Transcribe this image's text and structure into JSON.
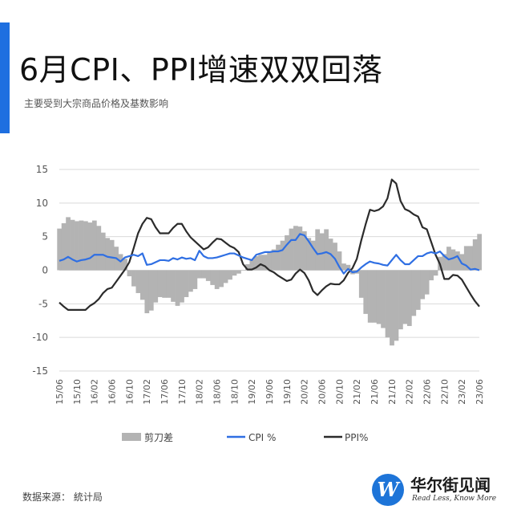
{
  "title": "6月CPI、PPI增速双双回落",
  "subtitle": "主要受到大宗商品价格及基数影响",
  "source": "数据来源： 統计局",
  "logo": {
    "mark": "W",
    "name": "华尔街见闻",
    "slogan": "Read Less, Know More"
  },
  "colors": {
    "accent": "#1e6fe0",
    "cpi": "#2f6fe3",
    "ppi": "#2b2b2b",
    "scissors": "#b3b3b3",
    "grid": "#d9d9d9"
  },
  "chart_data": {
    "type": "line",
    "ylim": [
      -15,
      15
    ],
    "yticks": [
      15,
      10,
      5,
      0,
      -5,
      -10,
      -15
    ],
    "grid": "horizontal",
    "legend_position": "bottom",
    "xtick_labels": [
      "15/06",
      "15/10",
      "16/02",
      "16/06",
      "16/10",
      "17/02",
      "17/06",
      "17/10",
      "18/02",
      "18/06",
      "18/10",
      "19/02",
      "19/06",
      "19/10",
      "20/02",
      "20/06",
      "20/10",
      "21/02",
      "21/06",
      "21/10",
      "22/02",
      "22/06",
      "22/10",
      "23/02",
      "23/06"
    ],
    "x": [
      "15/06",
      "15/07",
      "15/08",
      "15/09",
      "15/10",
      "15/11",
      "15/12",
      "16/01",
      "16/02",
      "16/03",
      "16/04",
      "16/05",
      "16/06",
      "16/07",
      "16/08",
      "16/09",
      "16/10",
      "16/11",
      "16/12",
      "17/01",
      "17/02",
      "17/03",
      "17/04",
      "17/05",
      "17/06",
      "17/07",
      "17/08",
      "17/09",
      "17/10",
      "17/11",
      "17/12",
      "18/01",
      "18/02",
      "18/03",
      "18/04",
      "18/05",
      "18/06",
      "18/07",
      "18/08",
      "18/09",
      "18/10",
      "18/11",
      "18/12",
      "19/01",
      "19/02",
      "19/03",
      "19/04",
      "19/05",
      "19/06",
      "19/07",
      "19/08",
      "19/09",
      "19/10",
      "19/11",
      "19/12",
      "20/01",
      "20/02",
      "20/03",
      "20/04",
      "20/05",
      "20/06",
      "20/07",
      "20/08",
      "20/09",
      "20/10",
      "20/11",
      "20/12",
      "21/01",
      "21/02",
      "21/03",
      "21/04",
      "21/05",
      "21/06",
      "21/07",
      "21/08",
      "21/09",
      "21/10",
      "21/11",
      "21/12",
      "22/01",
      "22/02",
      "22/03",
      "22/04",
      "22/05",
      "22/06",
      "22/07",
      "22/08",
      "22/09",
      "22/10",
      "22/11",
      "22/12",
      "23/01",
      "23/02",
      "23/03",
      "23/04",
      "23/05",
      "23/06"
    ],
    "series": [
      {
        "name": "剪刀差",
        "kind": "area",
        "values": [
          6.2,
          7.0,
          7.9,
          7.5,
          7.3,
          7.4,
          7.3,
          7.1,
          7.4,
          6.6,
          5.6,
          4.8,
          4.5,
          3.5,
          2.4,
          1.7,
          -0.9,
          -2.4,
          -3.4,
          -4.4,
          -6.4,
          -6.0,
          -4.8,
          -4.0,
          -4.1,
          -4.1,
          -4.7,
          -5.3,
          -4.8,
          -4.0,
          -3.2,
          -2.8,
          -1.2,
          -1.2,
          -1.6,
          -2.2,
          -2.8,
          -2.5,
          -1.9,
          -1.4,
          -0.8,
          -0.5,
          0.0,
          0.9,
          1.6,
          2.1,
          2.3,
          2.3,
          2.8,
          3.1,
          3.8,
          4.4,
          5.2,
          6.2,
          6.6,
          6.5,
          5.8,
          4.8,
          4.4,
          6.1,
          5.5,
          6.1,
          4.7,
          4.1,
          2.8,
          1.0,
          0.8,
          -0.6,
          -0.5,
          -4.1,
          -6.5,
          -7.8,
          -7.8,
          -8.0,
          -8.6,
          -10.0,
          -11.2,
          -10.5,
          -8.8,
          -8.0,
          -8.3,
          -6.8,
          -5.9,
          -4.3,
          -3.6,
          -1.5,
          -0.8,
          2.0,
          2.4,
          3.5,
          3.1,
          2.8,
          2.4,
          3.6,
          3.6,
          4.6,
          5.4
        ]
      },
      {
        "name": "CPI %",
        "kind": "line",
        "values": [
          1.4,
          1.6,
          2.0,
          1.6,
          1.3,
          1.5,
          1.6,
          1.8,
          2.3,
          2.3,
          2.3,
          2.0,
          1.9,
          1.8,
          1.3,
          1.9,
          2.1,
          2.3,
          2.1,
          2.5,
          0.8,
          0.9,
          1.2,
          1.5,
          1.5,
          1.4,
          1.8,
          1.6,
          1.9,
          1.7,
          1.8,
          1.5,
          2.9,
          2.1,
          1.8,
          1.8,
          1.9,
          2.1,
          2.3,
          2.5,
          2.5,
          2.2,
          1.9,
          1.7,
          1.5,
          2.3,
          2.5,
          2.7,
          2.7,
          2.8,
          2.8,
          3.0,
          3.8,
          4.5,
          4.5,
          5.4,
          5.2,
          4.3,
          3.3,
          2.4,
          2.5,
          2.7,
          2.4,
          1.7,
          0.5,
          -0.5,
          0.2,
          -0.3,
          -0.2,
          0.4,
          0.9,
          1.3,
          1.1,
          1.0,
          0.8,
          0.7,
          1.5,
          2.3,
          1.5,
          0.9,
          0.9,
          1.5,
          2.1,
          2.1,
          2.5,
          2.7,
          2.5,
          2.8,
          2.1,
          1.6,
          1.8,
          2.1,
          1.0,
          0.7,
          0.1,
          0.2,
          0.0
        ]
      },
      {
        "name": "PPI%",
        "kind": "line",
        "values": [
          -4.8,
          -5.4,
          -5.9,
          -5.9,
          -5.9,
          -5.9,
          -5.9,
          -5.3,
          -4.9,
          -4.3,
          -3.4,
          -2.8,
          -2.6,
          -1.7,
          -0.8,
          0.1,
          1.2,
          3.3,
          5.5,
          6.9,
          7.8,
          7.6,
          6.4,
          5.5,
          5.5,
          5.5,
          6.3,
          6.9,
          6.9,
          5.8,
          4.9,
          4.3,
          3.7,
          3.1,
          3.4,
          4.1,
          4.7,
          4.6,
          4.1,
          3.6,
          3.3,
          2.7,
          0.9,
          0.1,
          0.1,
          0.4,
          0.9,
          0.6,
          0.0,
          -0.3,
          -0.8,
          -1.2,
          -1.6,
          -1.4,
          -0.5,
          0.1,
          -0.4,
          -1.5,
          -3.1,
          -3.7,
          -3.0,
          -2.4,
          -2.0,
          -2.1,
          -2.1,
          -1.5,
          -0.4,
          0.3,
          1.7,
          4.4,
          6.8,
          9.0,
          8.8,
          9.0,
          9.5,
          10.7,
          13.5,
          12.9,
          10.3,
          9.1,
          8.8,
          8.3,
          8.0,
          6.4,
          6.1,
          4.2,
          2.3,
          0.9,
          -1.3,
          -1.3,
          -0.7,
          -0.8,
          -1.4,
          -2.5,
          -3.6,
          -4.6,
          -5.4
        ]
      }
    ]
  }
}
